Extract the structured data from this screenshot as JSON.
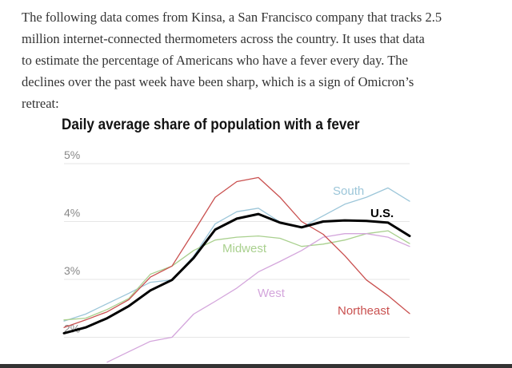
{
  "paragraph": {
    "lines": [
      "The following data comes from Kinsa, a San Francisco company that tracks 2.5",
      "million internet-connected thermometers across the country. It uses that data",
      "to estimate the percentage of Americans who have a fever every day. The",
      "declines over the past week have been sharp, which is a sign of Omicron’s",
      "retreat:"
    ]
  },
  "chart_data": {
    "type": "line",
    "title": "Daily average share of population with a fever",
    "xlabel": "",
    "ylabel": "",
    "ylim": [
      1.5,
      5.05
    ],
    "yticks": [
      2,
      3,
      4,
      5
    ],
    "ytick_labels": [
      "2%",
      "3%",
      "4%",
      "5%"
    ],
    "grid": true,
    "x": [
      0,
      1,
      2,
      3,
      4,
      5,
      6,
      7,
      8,
      9,
      10,
      11,
      12,
      13,
      14,
      15,
      16
    ],
    "series": [
      {
        "name": "South",
        "color": "#9cc6d9",
        "width": 1.3,
        "values": [
          2.28,
          2.4,
          2.58,
          2.76,
          2.95,
          2.99,
          3.4,
          3.96,
          4.17,
          4.23,
          3.99,
          3.9,
          4.1,
          4.3,
          4.42,
          4.58,
          4.35
        ]
      },
      {
        "name": "Midwest",
        "color": "#a9d08e",
        "width": 1.3,
        "values": [
          2.3,
          2.33,
          2.48,
          2.67,
          3.09,
          3.23,
          3.5,
          3.68,
          3.73,
          3.75,
          3.71,
          3.57,
          3.61,
          3.68,
          3.79,
          3.84,
          3.62
        ]
      },
      {
        "name": "West",
        "color": "#d4a6dc",
        "width": 1.3,
        "values": [
          null,
          null,
          1.57,
          1.75,
          1.93,
          2.0,
          2.4,
          2.62,
          2.85,
          3.13,
          3.31,
          3.5,
          3.73,
          3.79,
          3.79,
          3.73,
          3.57
        ]
      },
      {
        "name": "Northeast",
        "color": "#c9504f",
        "width": 1.3,
        "values": [
          2.17,
          2.3,
          2.44,
          2.65,
          3.04,
          3.23,
          3.82,
          4.42,
          4.69,
          4.76,
          4.42,
          4.0,
          3.78,
          3.41,
          2.99,
          2.72,
          2.41
        ]
      },
      {
        "name": "U.S.",
        "color": "#000000",
        "width": 3,
        "values": [
          2.07,
          2.17,
          2.33,
          2.54,
          2.81,
          2.99,
          3.37,
          3.86,
          4.05,
          4.13,
          3.98,
          3.9,
          4.0,
          4.02,
          4.01,
          3.98,
          3.75
        ]
      }
    ],
    "legend": "inline labels"
  }
}
